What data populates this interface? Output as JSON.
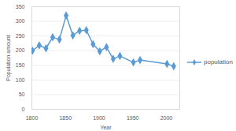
{
  "chart_data": {
    "type": "line",
    "x_label": "Year",
    "y_label": "Population amount",
    "x": [
      1801,
      1811,
      1821,
      1831,
      1841,
      1851,
      1861,
      1871,
      1881,
      1891,
      1901,
      1911,
      1921,
      1931,
      1951,
      1961,
      2001,
      2011
    ],
    "series": [
      {
        "name": "population",
        "color": "#5b9bd5",
        "marker": "diamond",
        "values": [
          200,
          218,
          208,
          246,
          238,
          320,
          252,
          268,
          270,
          222,
          198,
          212,
          172,
          182,
          160,
          168,
          155,
          147
        ]
      }
    ],
    "xlim": [
      1800,
      2020
    ],
    "xticks": [
      1800,
      1850,
      1900,
      1950,
      2000
    ],
    "ylim": [
      0,
      350
    ],
    "yticks": [
      0,
      50,
      100,
      150,
      200,
      250,
      300,
      350
    ],
    "grid": true,
    "legend": "right"
  }
}
